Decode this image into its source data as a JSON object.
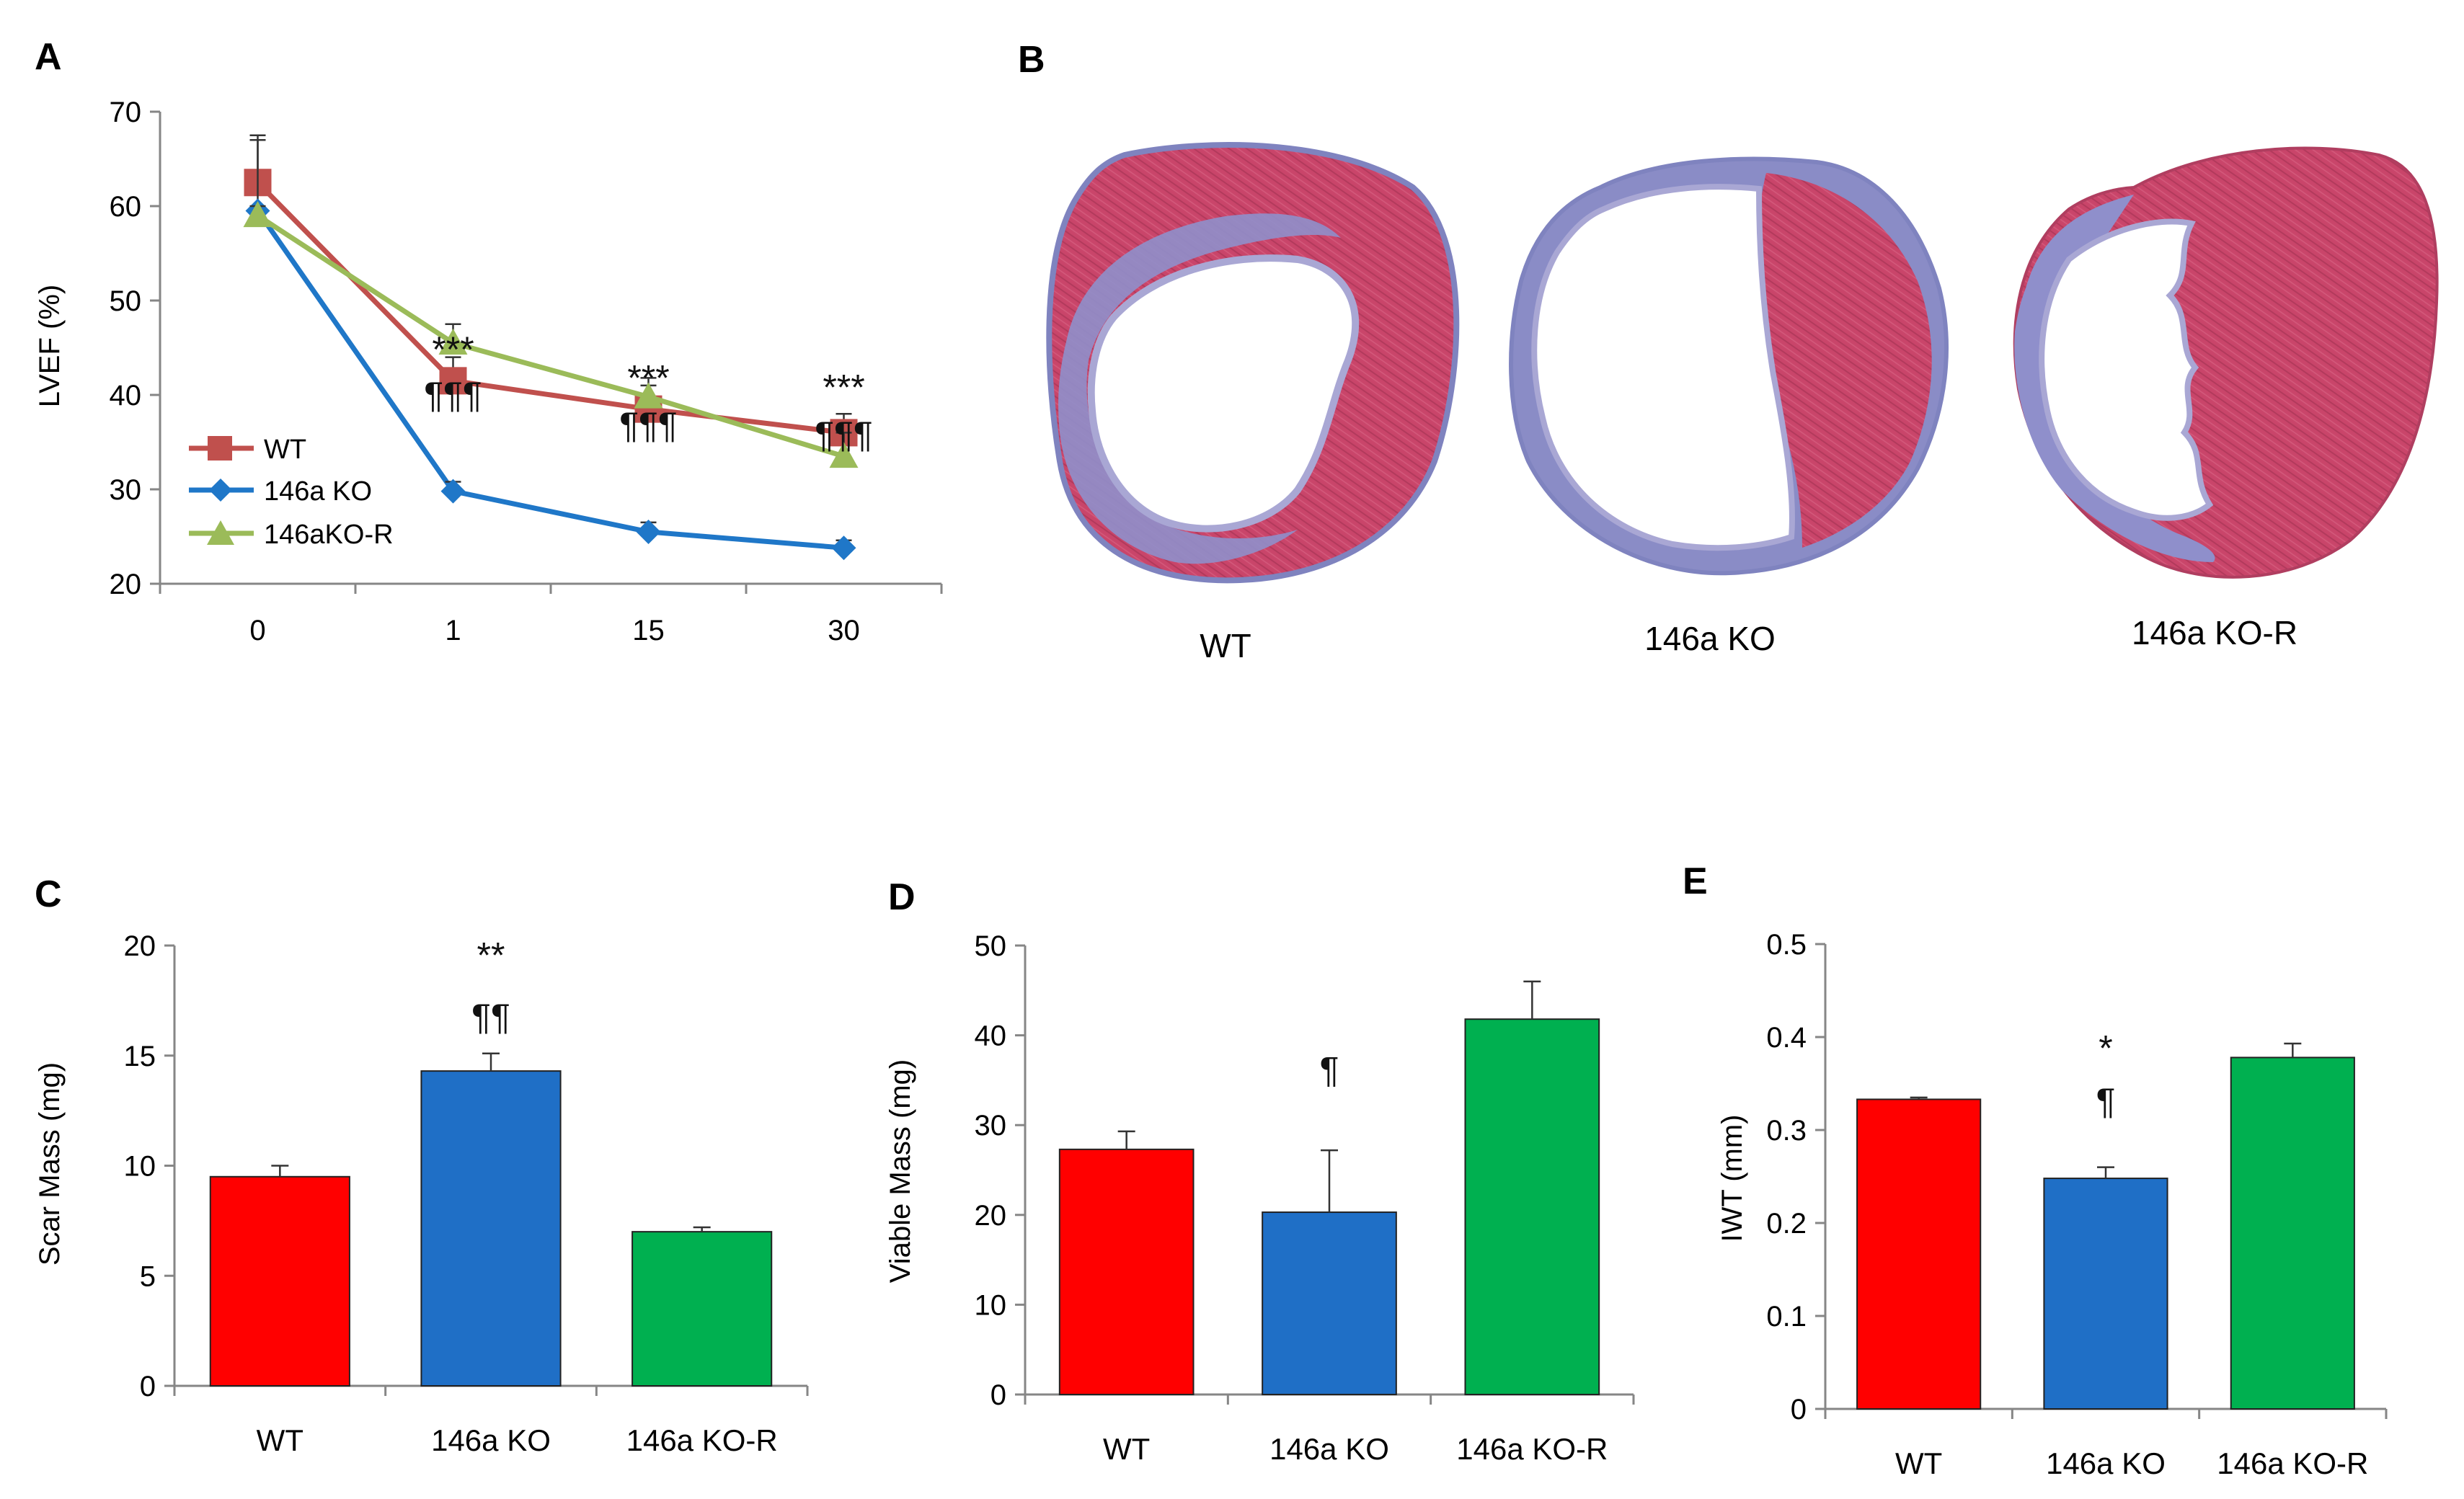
{
  "figure": {
    "panels": [
      "A",
      "B",
      "C",
      "D",
      "E"
    ]
  },
  "chart_data": [
    {
      "id": "A",
      "type": "line",
      "panel_letter": "A",
      "ylabel": "LVEF (%)",
      "xlabel": "",
      "categories": [
        "0",
        "1",
        "15",
        "30"
      ],
      "ylim": [
        20,
        70
      ],
      "yticks": [
        20,
        30,
        40,
        50,
        60,
        70
      ],
      "legend_position": "bottom-left",
      "series": [
        {
          "name": "WT",
          "color": "#c0504d",
          "marker": "square",
          "values": [
            62.5,
            41.5,
            38.5,
            36.0
          ],
          "errors": [
            4.5,
            2.5,
            2.5,
            2.0
          ]
        },
        {
          "name": "146a KO",
          "color": "#1f77c8",
          "marker": "diamond",
          "values": [
            59.5,
            29.8,
            25.5,
            23.8
          ],
          "errors": [
            8.0,
            1.0,
            1.0,
            0.8
          ]
        },
        {
          "name": "146aKO-R",
          "color": "#9bbb59",
          "marker": "triangle",
          "values": [
            59.0,
            45.5,
            39.8,
            33.5
          ],
          "errors": [
            1.0,
            2.0,
            2.0,
            2.5
          ]
        }
      ],
      "annotations": [
        {
          "category": "1",
          "value": 43.5,
          "text": "***"
        },
        {
          "category": "1",
          "value": 38.7,
          "text": "¶¶¶"
        },
        {
          "category": "15",
          "value": 40.5,
          "text": "***"
        },
        {
          "category": "15",
          "value": 35.5,
          "text": "¶¶¶"
        },
        {
          "category": "30",
          "value": 39.5,
          "text": "***"
        },
        {
          "category": "30",
          "value": 34.5,
          "text": "¶¶¶"
        }
      ]
    },
    {
      "id": "C",
      "type": "bar",
      "panel_letter": "C",
      "ylabel": "Scar Mass (mg)",
      "xlabel": "",
      "categories": [
        "WT",
        "146a KO",
        "146a KO-R"
      ],
      "values": [
        9.5,
        14.3,
        7.0
      ],
      "errors": [
        0.5,
        0.8,
        0.2
      ],
      "colors": [
        "#ff0000",
        "#1f6fc6",
        "#00b050"
      ],
      "ylim": [
        0,
        20
      ],
      "yticks": [
        0,
        5,
        10,
        15,
        20
      ],
      "annotations": [
        {
          "category": "146a KO",
          "value": 19.0,
          "text": "**"
        },
        {
          "category": "146a KO",
          "value": 16.2,
          "text": "¶¶"
        }
      ]
    },
    {
      "id": "D",
      "type": "bar",
      "panel_letter": "D",
      "ylabel": "Viable Mass (mg)",
      "xlabel": "",
      "categories": [
        "WT",
        "146a KO",
        "146a KO-R"
      ],
      "values": [
        27.3,
        20.3,
        41.8
      ],
      "errors": [
        2.0,
        6.9,
        4.2
      ],
      "colors": [
        "#ff0000",
        "#1f6fc6",
        "#00b050"
      ],
      "ylim": [
        0,
        50
      ],
      "yticks": [
        0,
        10,
        20,
        30,
        40,
        50
      ],
      "annotations": [
        {
          "category": "146a KO",
          "value": 34.8,
          "text": "¶"
        }
      ]
    },
    {
      "id": "E",
      "type": "bar",
      "panel_letter": "E",
      "ylabel": "IWT (mm)",
      "xlabel": "",
      "categories": [
        "WT",
        "146a KO",
        "146a KO-R"
      ],
      "values": [
        0.333,
        0.248,
        0.378
      ],
      "errors": [
        0.002,
        0.012,
        0.015
      ],
      "colors": [
        "#ff0000",
        "#1f6fc6",
        "#00b050"
      ],
      "ylim": [
        0,
        0.5
      ],
      "yticks": [
        0,
        0.1,
        0.2,
        0.3,
        0.4,
        0.5
      ],
      "ytick_labels": [
        "0",
        "0.1",
        "0.2",
        "0.3",
        "0.4",
        "0.5"
      ],
      "annotations": [
        {
          "category": "146a KO",
          "value": 0.375,
          "text": "*"
        },
        {
          "category": "146a KO",
          "value": 0.318,
          "text": "¶"
        }
      ]
    }
  ],
  "histology": {
    "panel_letter": "B",
    "labels": [
      "WT",
      "146a KO",
      "146a KO-R"
    ],
    "colors": {
      "myocardium": "#c9456a",
      "myocardium_dark": "#a8344f",
      "scar": "#7f83bf",
      "scar_light": "#a9a7d4"
    }
  }
}
